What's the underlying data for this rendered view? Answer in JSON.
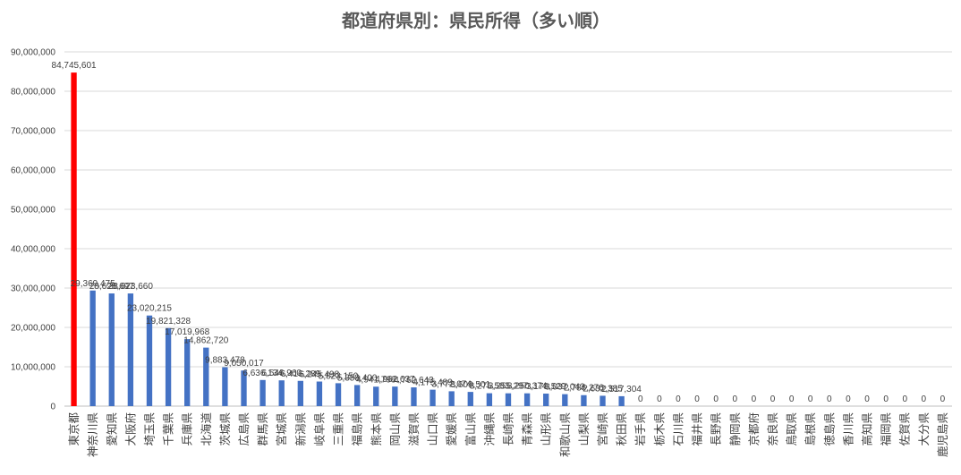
{
  "chart_data": {
    "type": "bar",
    "title": "都道府県別：県民所得（多い順）",
    "xlabel": "",
    "ylabel": "",
    "ylim": [
      0,
      90000000
    ],
    "yticks": [
      0,
      10000000,
      20000000,
      30000000,
      40000000,
      50000000,
      60000000,
      70000000,
      80000000,
      90000000
    ],
    "ytick_labels": [
      "0",
      "10,000,000",
      "20,000,000",
      "30,000,000",
      "40,000,000",
      "50,000,000",
      "60,000,000",
      "70,000,000",
      "80,000,000",
      "90,000,000"
    ],
    "grid": true,
    "legend": "none",
    "colors": {
      "highlight": "#ff0000",
      "bar": "#4472c4",
      "grid": "#d9d9d9",
      "text": "#404040",
      "title": "#595959"
    },
    "categories": [
      "東京都",
      "神奈川県",
      "愛知県",
      "大阪府",
      "埼玉県",
      "千葉県",
      "兵庫県",
      "北海道",
      "茨城県",
      "広島県",
      "群馬県",
      "宮城県",
      "新潟県",
      "岐阜県",
      "三重県",
      "福島県",
      "熊本県",
      "岡山県",
      "滋賀県",
      "山口県",
      "愛媛県",
      "富山県",
      "沖縄県",
      "長崎県",
      "青森県",
      "山形県",
      "和歌山県",
      "山梨県",
      "宮崎県",
      "秋田県",
      "岩手県",
      "栃木県",
      "石川県",
      "福井県",
      "長野県",
      "静岡県",
      "京都府",
      "奈良県",
      "鳥取県",
      "島根県",
      "徳島県",
      "香川県",
      "高知県",
      "福岡県",
      "佐賀県",
      "大分県",
      "鹿児島県"
    ],
    "values": [
      84745601,
      29369475,
      28628697,
      28623660,
      23020215,
      19821328,
      17019968,
      14862720,
      9883478,
      9050017,
      6636134,
      6546960,
      6416289,
      6245498,
      5823150,
      5358400,
      4941798,
      4962637,
      4762643,
      4175489,
      3772074,
      3609501,
      3275583,
      3255297,
      3250374,
      3178529,
      3037043,
      2786276,
      2632385,
      2517304,
      0,
      0,
      0,
      0,
      0,
      0,
      0,
      0,
      0,
      0,
      0,
      0,
      0,
      0,
      0,
      0,
      0
    ],
    "labels": [
      "84,745,601",
      "29,369,475",
      "28,628,697",
      "28,623,660",
      "23,020,215",
      "19,821,328",
      "17,019,968",
      "14,862,720",
      "9,883,478",
      "9,050,017",
      "6,636,134",
      "6,546,960",
      "6,416,289",
      "6,245,498",
      "5,823,150",
      "5,358,400",
      "4,941,798",
      "4,962,637",
      "4,762,643",
      "4,175,489",
      "3,772,074",
      "3,609,501",
      "3,275,583",
      "3,255,297",
      "3,250,374",
      "3,178,529",
      "3,037,043",
      "2,786,276",
      "2,632,385",
      "2,517,304",
      "0",
      "0",
      "0",
      "0",
      "0",
      "0",
      "0",
      "0",
      "0",
      "0",
      "0",
      "0",
      "0",
      "0",
      "0",
      "0",
      "0"
    ]
  }
}
